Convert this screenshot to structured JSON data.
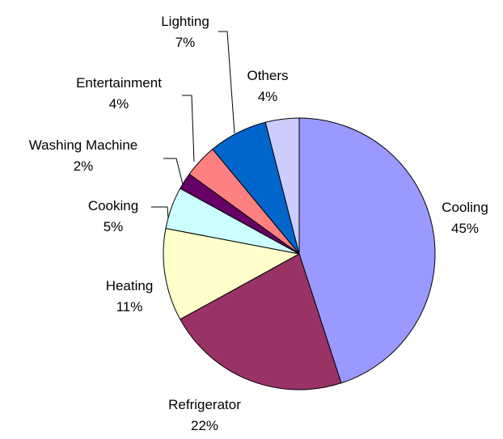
{
  "chart_data": {
    "type": "pie",
    "title": "",
    "slices": [
      {
        "name": "Cooling",
        "value": 45,
        "label": "45%",
        "color": "#9999FF"
      },
      {
        "name": "Refrigerator",
        "value": 22,
        "label": "22%",
        "color": "#993366"
      },
      {
        "name": "Heating",
        "value": 11,
        "label": "11%",
        "color": "#FFFFCC"
      },
      {
        "name": "Cooking",
        "value": 5,
        "label": "5%",
        "color": "#CCFFFF"
      },
      {
        "name": "Washing Machine",
        "value": 2,
        "label": "2%",
        "color": "#660066"
      },
      {
        "name": "Entertainment",
        "value": 4,
        "label": "4%",
        "color": "#FF8080"
      },
      {
        "name": "Lighting",
        "value": 7,
        "label": "7%",
        "color": "#0066CC"
      },
      {
        "name": "Others",
        "value": 4,
        "label": "4%",
        "color": "#CCCCFF"
      }
    ],
    "start_angle_deg": 0,
    "direction": "clockwise",
    "legend": "none"
  }
}
